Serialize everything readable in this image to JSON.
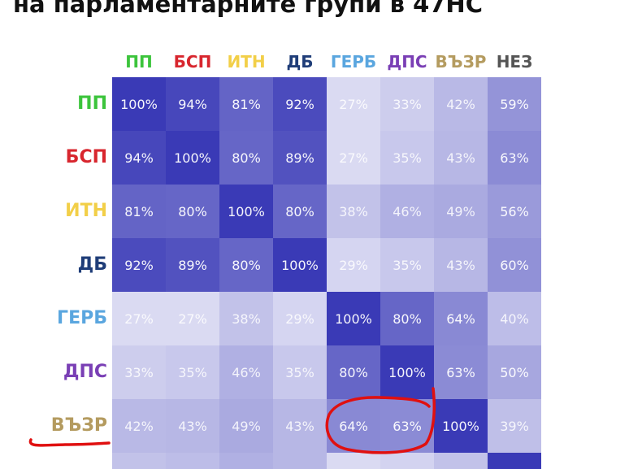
{
  "title": "на парламентарните групи в 47НС",
  "colors": {
    "ПП": "#3cc43c",
    "БСП": "#d8262e",
    "ИТН": "#f2cf48",
    "ДБ": "#1f3d78",
    "ГЕРБ": "#5aa6df",
    "ДПС": "#7a3fb5",
    "ВЪЗР": "#b49b5f",
    "НЕЗ": "#555555",
    "annotation": "#e01010"
  },
  "chart_data": {
    "type": "heatmap",
    "columns": [
      "ПП",
      "БСП",
      "ИТН",
      "ДБ",
      "ГЕРБ",
      "ДПС",
      "ВЪЗР",
      "НЕЗ"
    ],
    "rows": [
      "ПП",
      "БСП",
      "ИТН",
      "ДБ",
      "ГЕРБ",
      "ДПС",
      "ВЪЗР"
    ],
    "values": [
      [
        100,
        94,
        81,
        92,
        27,
        33,
        42,
        59
      ],
      [
        94,
        100,
        80,
        89,
        27,
        35,
        43,
        63
      ],
      [
        81,
        80,
        100,
        80,
        38,
        46,
        49,
        56
      ],
      [
        92,
        89,
        80,
        100,
        29,
        35,
        43,
        60
      ],
      [
        27,
        27,
        38,
        29,
        100,
        80,
        64,
        40
      ],
      [
        33,
        35,
        46,
        35,
        80,
        100,
        63,
        50
      ],
      [
        42,
        43,
        49,
        43,
        64,
        63,
        100,
        39
      ]
    ],
    "unit": "%",
    "colorscale": [
      "#dedef4",
      "#3a3ab6"
    ],
    "annotations": [
      {
        "type": "underline",
        "row": "ВЪЗР"
      },
      {
        "type": "circle",
        "row": "ВЪЗР",
        "columns": [
          "ГЕРБ",
          "ДПС"
        ]
      }
    ]
  }
}
